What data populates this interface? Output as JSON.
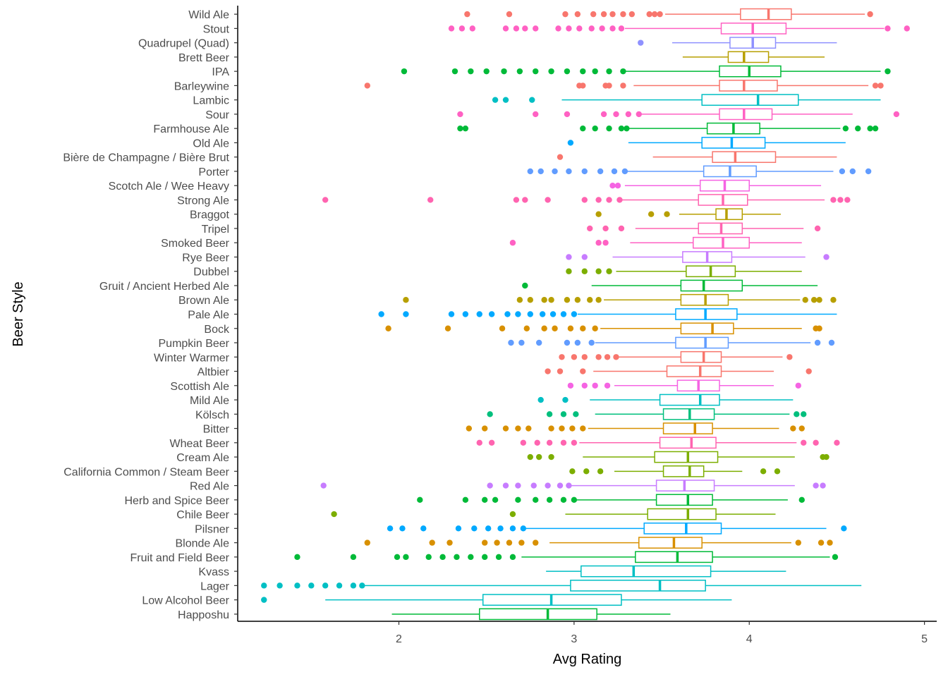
{
  "chart_data": {
    "type": "boxplot",
    "title": "",
    "xlabel": "Avg Rating",
    "ylabel": "Beer Style",
    "xlim": [
      1.08,
      5.07
    ],
    "xticks": [
      2,
      3,
      4,
      5
    ],
    "orientation": "horizontal",
    "grid": false,
    "legend": "none",
    "categories": [
      "Wild Ale",
      "Stout",
      "Quadrupel (Quad)",
      "Brett Beer",
      "IPA",
      "Barleywine",
      "Lambic",
      "Sour",
      "Farmhouse Ale",
      "Old Ale",
      "Bière de Champagne / Bière Brut",
      "Porter",
      "Scotch Ale / Wee Heavy",
      "Strong Ale",
      "Braggot",
      "Tripel",
      "Smoked Beer",
      "Rye Beer",
      "Dubbel",
      "Gruit / Ancient Herbed Ale",
      "Brown Ale",
      "Pale Ale",
      "Bock",
      "Pumpkin Beer",
      "Winter Warmer",
      "Altbier",
      "Scottish Ale",
      "Mild Ale",
      "Kölsch",
      "Bitter",
      "Wheat Beer",
      "Cream Ale",
      "California Common / Steam Beer",
      "Red Ale",
      "Herb and Spice Beer",
      "Chile Beer",
      "Pilsner",
      "Blonde Ale",
      "Fruit and Field Beer",
      "Kvass",
      "Lager",
      "Low Alcohol Beer",
      "Happoshu"
    ],
    "boxes": [
      {
        "style": "Wild Ale",
        "color": "#F8766D",
        "wlo": 3.52,
        "q1": 3.95,
        "median": 4.11,
        "q3": 4.24,
        "whi": 4.66,
        "outliers": [
          2.39,
          2.63,
          2.95,
          3.02,
          3.11,
          3.17,
          3.22,
          3.28,
          3.33,
          3.43,
          3.46,
          3.49,
          4.69
        ]
      },
      {
        "style": "Stout",
        "color": "#FF61C3",
        "wlo": 3.29,
        "q1": 3.84,
        "median": 4.02,
        "q3": 4.21,
        "whi": 4.77,
        "outliers": [
          2.3,
          2.36,
          2.42,
          2.61,
          2.67,
          2.72,
          2.78,
          2.91,
          2.97,
          3.03,
          3.1,
          3.16,
          3.22,
          3.27,
          4.79,
          4.9
        ]
      },
      {
        "style": "Quadrupel (Quad)",
        "color": "#8F91FF",
        "wlo": 3.56,
        "q1": 3.89,
        "median": 4.02,
        "q3": 4.15,
        "whi": 4.5,
        "outliers": [
          3.38
        ]
      },
      {
        "style": "Brett Beer",
        "color": "#B79F00",
        "wlo": 3.62,
        "q1": 3.88,
        "median": 3.97,
        "q3": 4.11,
        "whi": 4.43,
        "outliers": []
      },
      {
        "style": "IPA",
        "color": "#00BA38",
        "wlo": 3.29,
        "q1": 3.83,
        "median": 4.0,
        "q3": 4.18,
        "whi": 4.75,
        "outliers": [
          2.03,
          2.32,
          2.41,
          2.5,
          2.6,
          2.69,
          2.78,
          2.87,
          2.96,
          3.05,
          3.12,
          3.2,
          3.28,
          4.79
        ]
      },
      {
        "style": "Barleywine",
        "color": "#F8766D",
        "wlo": 3.34,
        "q1": 3.83,
        "median": 3.97,
        "q3": 4.16,
        "whi": 4.68,
        "outliers": [
          1.82,
          3.03,
          3.05,
          3.18,
          3.2,
          3.28,
          4.72,
          4.75
        ]
      },
      {
        "style": "Lambic",
        "color": "#00BFC4",
        "wlo": 2.93,
        "q1": 3.73,
        "median": 4.05,
        "q3": 4.28,
        "whi": 4.75,
        "outliers": [
          2.55,
          2.61,
          2.76
        ]
      },
      {
        "style": "Sour",
        "color": "#FF61C3",
        "wlo": 3.38,
        "q1": 3.83,
        "median": 3.97,
        "q3": 4.13,
        "whi": 4.59,
        "outliers": [
          2.35,
          2.78,
          2.96,
          3.17,
          3.24,
          3.31,
          3.37,
          4.84
        ]
      },
      {
        "style": "Farmhouse Ale",
        "color": "#00BA38",
        "wlo": 3.29,
        "q1": 3.76,
        "median": 3.91,
        "q3": 4.06,
        "whi": 4.52,
        "outliers": [
          2.35,
          2.38,
          3.05,
          3.12,
          3.2,
          3.27,
          3.3,
          4.55,
          4.62,
          4.69,
          4.72
        ]
      },
      {
        "style": "Old Ale",
        "color": "#00A9FF",
        "wlo": 3.31,
        "q1": 3.73,
        "median": 3.9,
        "q3": 4.09,
        "whi": 4.55,
        "outliers": [
          2.98
        ]
      },
      {
        "style": "Bière de Champagne / Bière Brut",
        "color": "#F8766D",
        "wlo": 3.45,
        "q1": 3.79,
        "median": 3.92,
        "q3": 4.15,
        "whi": 4.5,
        "outliers": [
          2.92
        ]
      },
      {
        "style": "Porter",
        "color": "#619CFF",
        "wlo": 3.29,
        "q1": 3.74,
        "median": 3.89,
        "q3": 4.04,
        "whi": 4.48,
        "outliers": [
          2.75,
          2.81,
          2.89,
          2.97,
          3.06,
          3.15,
          3.23,
          3.29,
          4.53,
          4.59,
          4.68
        ]
      },
      {
        "style": "Scotch Ale / Wee Heavy",
        "color": "#F564E3",
        "wlo": 3.29,
        "q1": 3.72,
        "median": 3.86,
        "q3": 4.0,
        "whi": 4.41,
        "outliers": [
          3.22,
          3.25
        ]
      },
      {
        "style": "Strong Ale",
        "color": "#FF64B0",
        "wlo": 3.26,
        "q1": 3.71,
        "median": 3.85,
        "q3": 3.99,
        "whi": 4.43,
        "outliers": [
          1.58,
          2.18,
          2.67,
          2.72,
          2.85,
          3.06,
          3.14,
          3.2,
          3.26,
          4.48,
          4.52,
          4.56
        ]
      },
      {
        "style": "Braggot",
        "color": "#B79F00",
        "wlo": 3.6,
        "q1": 3.81,
        "median": 3.87,
        "q3": 3.96,
        "whi": 4.18,
        "outliers": [
          3.14,
          3.44,
          3.53
        ]
      },
      {
        "style": "Tripel",
        "color": "#FF64B0",
        "wlo": 3.35,
        "q1": 3.71,
        "median": 3.84,
        "q3": 3.96,
        "whi": 4.31,
        "outliers": [
          3.09,
          3.18,
          3.27,
          4.39
        ]
      },
      {
        "style": "Smoked Beer",
        "color": "#FF61C3",
        "wlo": 3.32,
        "q1": 3.68,
        "median": 3.85,
        "q3": 4.0,
        "whi": 4.3,
        "outliers": [
          2.65,
          3.14,
          3.18
        ]
      },
      {
        "style": "Rye Beer",
        "color": "#C77CFF",
        "wlo": 3.22,
        "q1": 3.62,
        "median": 3.76,
        "q3": 3.9,
        "whi": 4.32,
        "outliers": [
          2.97,
          3.06,
          4.44
        ]
      },
      {
        "style": "Dubbel",
        "color": "#7CAE00",
        "wlo": 3.24,
        "q1": 3.64,
        "median": 3.78,
        "q3": 3.92,
        "whi": 4.3,
        "outliers": [
          2.97,
          3.06,
          3.14,
          3.2
        ]
      },
      {
        "style": "Gruit / Ancient Herbed Ale",
        "color": "#00BA38",
        "wlo": 3.1,
        "q1": 3.61,
        "median": 3.74,
        "q3": 3.96,
        "whi": 4.39,
        "outliers": [
          2.72
        ]
      },
      {
        "style": "Brown Ale",
        "color": "#B79F00",
        "wlo": 3.17,
        "q1": 3.61,
        "median": 3.75,
        "q3": 3.88,
        "whi": 4.29,
        "outliers": [
          2.04,
          2.69,
          2.75,
          2.83,
          2.87,
          2.96,
          3.02,
          3.09,
          3.14,
          4.32,
          4.37,
          4.4,
          4.48
        ]
      },
      {
        "style": "Pale Ale",
        "color": "#00A9FF",
        "wlo": 3.02,
        "q1": 3.58,
        "median": 3.75,
        "q3": 3.93,
        "whi": 4.5,
        "outliers": [
          1.9,
          2.04,
          2.3,
          2.38,
          2.46,
          2.53,
          2.62,
          2.68,
          2.75,
          2.82,
          2.88,
          2.94,
          3.0
        ]
      },
      {
        "style": "Bock",
        "color": "#D89000",
        "wlo": 3.15,
        "q1": 3.61,
        "median": 3.79,
        "q3": 3.91,
        "whi": 4.3,
        "outliers": [
          1.94,
          2.28,
          2.59,
          2.73,
          2.83,
          2.89,
          2.98,
          3.05,
          3.12,
          4.38,
          4.4
        ]
      },
      {
        "style": "Pumpkin Beer",
        "color": "#619CFF",
        "wlo": 3.12,
        "q1": 3.58,
        "median": 3.75,
        "q3": 3.88,
        "whi": 4.35,
        "outliers": [
          2.64,
          2.7,
          2.8,
          2.96,
          3.02,
          3.1,
          4.39,
          4.47
        ]
      },
      {
        "style": "Winter Warmer",
        "color": "#F8766D",
        "wlo": 3.23,
        "q1": 3.61,
        "median": 3.74,
        "q3": 3.84,
        "whi": 4.19,
        "outliers": [
          2.93,
          3.0,
          3.06,
          3.14,
          3.19,
          3.24,
          4.23
        ]
      },
      {
        "style": "Altbier",
        "color": "#F8766D",
        "wlo": 3.11,
        "q1": 3.53,
        "median": 3.72,
        "q3": 3.84,
        "whi": 4.14,
        "outliers": [
          2.85,
          2.92,
          3.05,
          4.34
        ]
      },
      {
        "style": "Scottish Ale",
        "color": "#F564E3",
        "wlo": 3.23,
        "q1": 3.59,
        "median": 3.71,
        "q3": 3.83,
        "whi": 4.14,
        "outliers": [
          2.98,
          3.06,
          3.12,
          3.19,
          4.28
        ]
      },
      {
        "style": "Mild Ale",
        "color": "#00BFC4",
        "wlo": 3.09,
        "q1": 3.49,
        "median": 3.72,
        "q3": 3.83,
        "whi": 4.25,
        "outliers": [
          2.81,
          2.95
        ]
      },
      {
        "style": "Kölsch",
        "color": "#00BF7D",
        "wlo": 3.12,
        "q1": 3.51,
        "median": 3.66,
        "q3": 3.8,
        "whi": 4.23,
        "outliers": [
          2.52,
          2.86,
          2.94,
          3.01,
          4.27,
          4.31
        ]
      },
      {
        "style": "Bitter",
        "color": "#D89000",
        "wlo": 3.08,
        "q1": 3.51,
        "median": 3.69,
        "q3": 3.79,
        "whi": 4.17,
        "outliers": [
          2.4,
          2.49,
          2.61,
          2.68,
          2.74,
          2.87,
          2.93,
          2.99,
          3.05,
          4.25,
          4.3
        ]
      },
      {
        "style": "Wheat Beer",
        "color": "#FF64B0",
        "wlo": 3.03,
        "q1": 3.49,
        "median": 3.67,
        "q3": 3.81,
        "whi": 4.27,
        "outliers": [
          2.46,
          2.53,
          2.71,
          2.79,
          2.86,
          2.94,
          3.0,
          4.31,
          4.38,
          4.5
        ]
      },
      {
        "style": "Cream Ale",
        "color": "#7CAE00",
        "wlo": 3.05,
        "q1": 3.46,
        "median": 3.65,
        "q3": 3.82,
        "whi": 4.26,
        "outliers": [
          2.75,
          2.8,
          2.87,
          4.42,
          4.44
        ]
      },
      {
        "style": "California Common / Steam Beer",
        "color": "#7CAE00",
        "wlo": 3.23,
        "q1": 3.51,
        "median": 3.66,
        "q3": 3.74,
        "whi": 3.96,
        "outliers": [
          2.99,
          3.07,
          3.15,
          4.08,
          4.16
        ]
      },
      {
        "style": "Red Ale",
        "color": "#C77CFF",
        "wlo": 2.98,
        "q1": 3.47,
        "median": 3.63,
        "q3": 3.8,
        "whi": 4.26,
        "outliers": [
          1.57,
          2.52,
          2.61,
          2.68,
          2.77,
          2.85,
          2.92,
          2.97,
          4.38,
          4.42
        ]
      },
      {
        "style": "Herb and Spice Beer",
        "color": "#00BA38",
        "wlo": 3.0,
        "q1": 3.47,
        "median": 3.65,
        "q3": 3.79,
        "whi": 4.22,
        "outliers": [
          2.12,
          2.38,
          2.49,
          2.55,
          2.68,
          2.78,
          2.86,
          2.94,
          3.0,
          4.3
        ]
      },
      {
        "style": "Chile Beer",
        "color": "#7CAE00",
        "wlo": 2.95,
        "q1": 3.42,
        "median": 3.65,
        "q3": 3.81,
        "whi": 4.15,
        "outliers": [
          1.63,
          2.65
        ]
      },
      {
        "style": "Pilsner",
        "color": "#00A9FF",
        "wlo": 2.72,
        "q1": 3.4,
        "median": 3.64,
        "q3": 3.84,
        "whi": 4.44,
        "outliers": [
          1.95,
          2.02,
          2.14,
          2.34,
          2.43,
          2.51,
          2.58,
          2.65,
          2.71,
          4.54
        ]
      },
      {
        "style": "Blonde Ale",
        "color": "#D89000",
        "wlo": 2.86,
        "q1": 3.37,
        "median": 3.57,
        "q3": 3.73,
        "whi": 4.24,
        "outliers": [
          1.82,
          2.19,
          2.29,
          2.49,
          2.56,
          2.63,
          2.7,
          2.78,
          4.28,
          4.41,
          4.46
        ]
      },
      {
        "style": "Fruit and Field Beer",
        "color": "#00BA38",
        "wlo": 2.7,
        "q1": 3.35,
        "median": 3.59,
        "q3": 3.79,
        "whi": 4.46,
        "outliers": [
          1.42,
          1.74,
          1.99,
          2.04,
          2.17,
          2.25,
          2.33,
          2.41,
          2.49,
          2.57,
          2.65,
          4.49
        ]
      },
      {
        "style": "Kvass",
        "color": "#00BFC4",
        "wlo": 2.84,
        "q1": 3.04,
        "median": 3.34,
        "q3": 3.78,
        "whi": 4.21,
        "outliers": []
      },
      {
        "style": "Lager",
        "color": "#00BFC4",
        "wlo": 1.8,
        "q1": 2.98,
        "median": 3.49,
        "q3": 3.75,
        "whi": 4.64,
        "outliers": [
          1.23,
          1.32,
          1.42,
          1.5,
          1.58,
          1.66,
          1.74,
          1.79
        ]
      },
      {
        "style": "Low Alcohol Beer",
        "color": "#00BFC4",
        "wlo": 1.58,
        "q1": 2.48,
        "median": 2.87,
        "q3": 3.27,
        "whi": 3.9,
        "outliers": [
          1.23
        ]
      },
      {
        "style": "Happoshu",
        "color": "#00BA38",
        "wlo": 1.96,
        "q1": 2.46,
        "median": 2.85,
        "q3": 3.13,
        "whi": 3.55,
        "outliers": []
      }
    ]
  }
}
